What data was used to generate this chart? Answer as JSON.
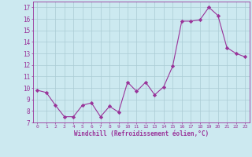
{
  "x": [
    0,
    1,
    2,
    3,
    4,
    5,
    6,
    7,
    8,
    9,
    10,
    11,
    12,
    13,
    14,
    15,
    16,
    17,
    18,
    19,
    20,
    21,
    22,
    23
  ],
  "y": [
    9.8,
    9.6,
    8.5,
    7.5,
    7.5,
    8.5,
    8.7,
    7.5,
    8.4,
    7.9,
    10.5,
    9.7,
    10.5,
    9.4,
    10.1,
    11.9,
    15.8,
    15.8,
    15.9,
    17.0,
    16.3,
    13.5,
    13.0,
    12.7
  ],
  "line_color": "#993399",
  "marker": "D",
  "marker_size": 2.2,
  "bg_color": "#cce9f0",
  "grid_color": "#aaccd4",
  "xlabel": "Windchill (Refroidissement éolien,°C)",
  "ylabel_ticks": [
    7,
    8,
    9,
    10,
    11,
    12,
    13,
    14,
    15,
    16,
    17
  ],
  "xlim": [
    -0.5,
    23.5
  ],
  "ylim": [
    7,
    17.5
  ],
  "label_color": "#993399",
  "tick_color": "#993399"
}
